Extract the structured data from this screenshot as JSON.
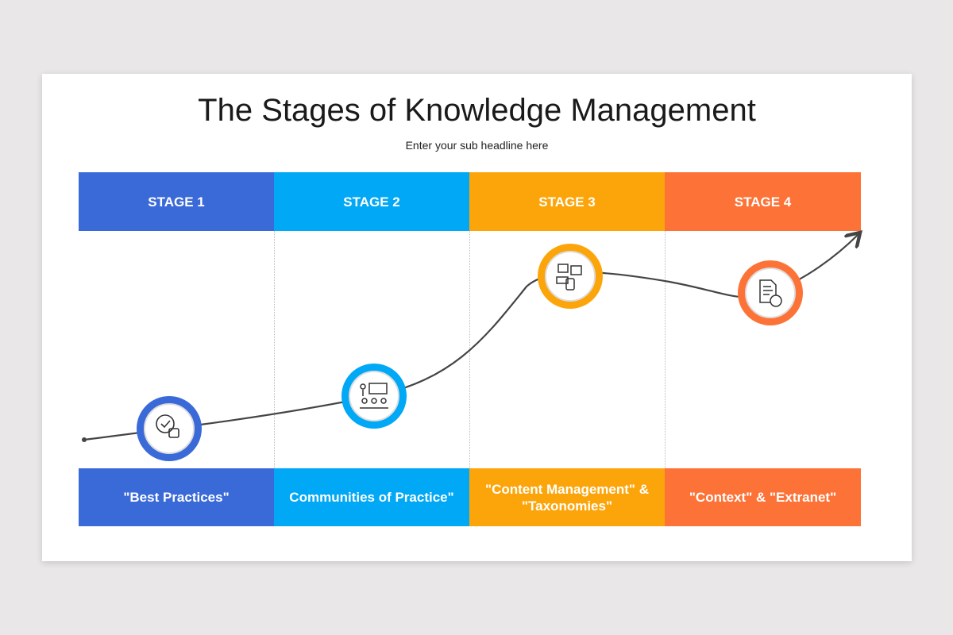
{
  "title": "The Stages of Knowledge Management",
  "subtitle": "Enter your sub headline here",
  "stages": [
    {
      "label": "STAGE 1",
      "caption": "\"Best Practices\"",
      "color": "#3a6ad8",
      "icon": "thumbs-up-check-icon"
    },
    {
      "label": "STAGE 2",
      "caption": "Communities of Practice\"",
      "color": "#00a8f5",
      "icon": "presentation-audience-icon"
    },
    {
      "label": "STAGE 3",
      "caption_lines": [
        "\"Content Management\" &",
        "\"Taxonomies\""
      ],
      "color": "#fca50a",
      "icon": "content-media-icon"
    },
    {
      "label": "STAGE 4",
      "caption": "\"Context\" & \"Extranet\"",
      "color": "#fd7337",
      "icon": "document-share-icon"
    }
  ]
}
